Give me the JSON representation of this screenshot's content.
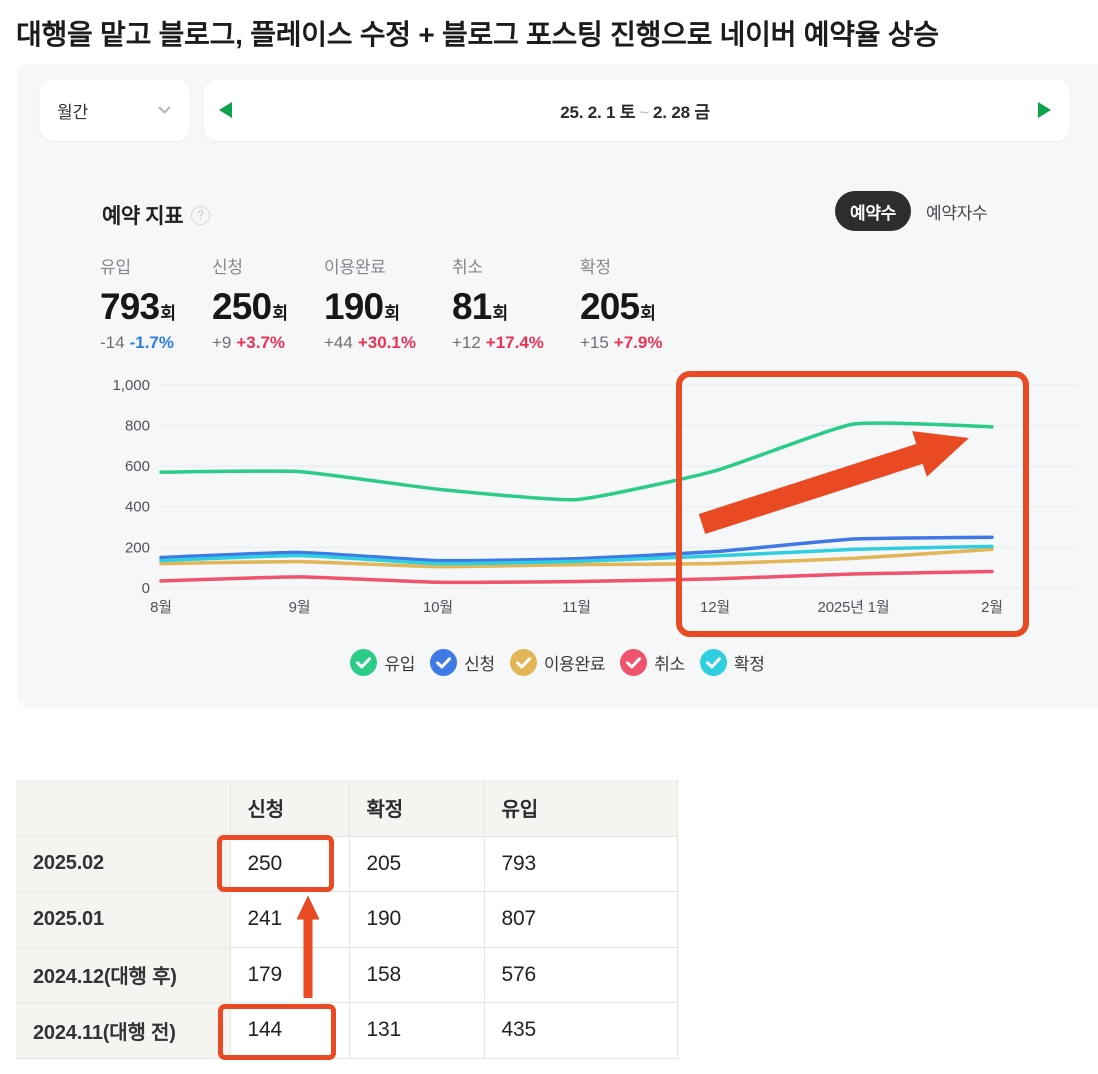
{
  "title": "대행을 맡고 블로그, 플레이스 수정 + 블로그 포스팅 진행으로 네이버 예약율 상승",
  "toolbar": {
    "period_select": "월간",
    "date_range": {
      "start": "25. 2. 1 토",
      "separator": "~",
      "end": "2. 28 금"
    }
  },
  "metrics": {
    "section_title": "예약 지표",
    "help_icon": "?",
    "toggle": {
      "selected": "예약수",
      "unselected": "예약자수"
    },
    "stats": [
      {
        "label": "유입",
        "value": "793",
        "unit": "회",
        "delta": "-14",
        "delta_pct": "-1.7%",
        "delta_color": "#2e7de9"
      },
      {
        "label": "신청",
        "value": "250",
        "unit": "회",
        "delta": "+9",
        "delta_pct": "+3.7%",
        "delta_color": "#ec3254"
      },
      {
        "label": "이용완료",
        "value": "190",
        "unit": "회",
        "delta": "+44",
        "delta_pct": "+30.1%",
        "delta_color": "#ec3254"
      },
      {
        "label": "취소",
        "value": "81",
        "unit": "회",
        "delta": "+12",
        "delta_pct": "+17.4%",
        "delta_color": "#ec3254"
      },
      {
        "label": "확정",
        "value": "205",
        "unit": "회",
        "delta": "+15",
        "delta_pct": "+7.9%",
        "delta_color": "#ec3254"
      }
    ]
  },
  "chart_data": {
    "type": "line",
    "x_labels": [
      "8월",
      "9월",
      "10월",
      "11월",
      "12월",
      "2025년 1월",
      "2월"
    ],
    "y_ticks": [
      0,
      200,
      400,
      600,
      800,
      1000
    ],
    "y_tick_labels": [
      "0",
      "200",
      "400",
      "600",
      "800",
      "1,000"
    ],
    "ylim": [
      0,
      1000
    ],
    "grid": true,
    "legend_position": "bottom",
    "series": [
      {
        "name": "유입",
        "color": "#2bcb88",
        "values": [
          570,
          573,
          486,
          435,
          576,
          807,
          793
        ]
      },
      {
        "name": "신청",
        "color": "#3e79e6",
        "values": [
          150,
          175,
          135,
          144,
          179,
          241,
          250
        ]
      },
      {
        "name": "이용완료",
        "color": "#e2b656",
        "values": [
          120,
          130,
          105,
          115,
          120,
          146,
          190
        ]
      },
      {
        "name": "취소",
        "color": "#f0536e",
        "values": [
          35,
          55,
          28,
          32,
          45,
          69,
          81
        ]
      },
      {
        "name": "확정",
        "color": "#30cfe0",
        "values": [
          135,
          160,
          120,
          131,
          158,
          190,
          205
        ]
      }
    ]
  },
  "annotation_color": "#e94a23",
  "nav_arrow_color": "#0ba34f",
  "table": {
    "headers": [
      "",
      "신청",
      "확정",
      "유입"
    ],
    "rows": [
      {
        "label": "2025.02",
        "cells": [
          "250",
          "205",
          "793"
        ]
      },
      {
        "label": "2025.01",
        "cells": [
          "241",
          "190",
          "807"
        ]
      },
      {
        "label": "2024.12(대행 후)",
        "cells": [
          "179",
          "158",
          "576"
        ]
      },
      {
        "label": "2024.11(대행 전)",
        "cells": [
          "144",
          "131",
          "435"
        ]
      }
    ]
  }
}
